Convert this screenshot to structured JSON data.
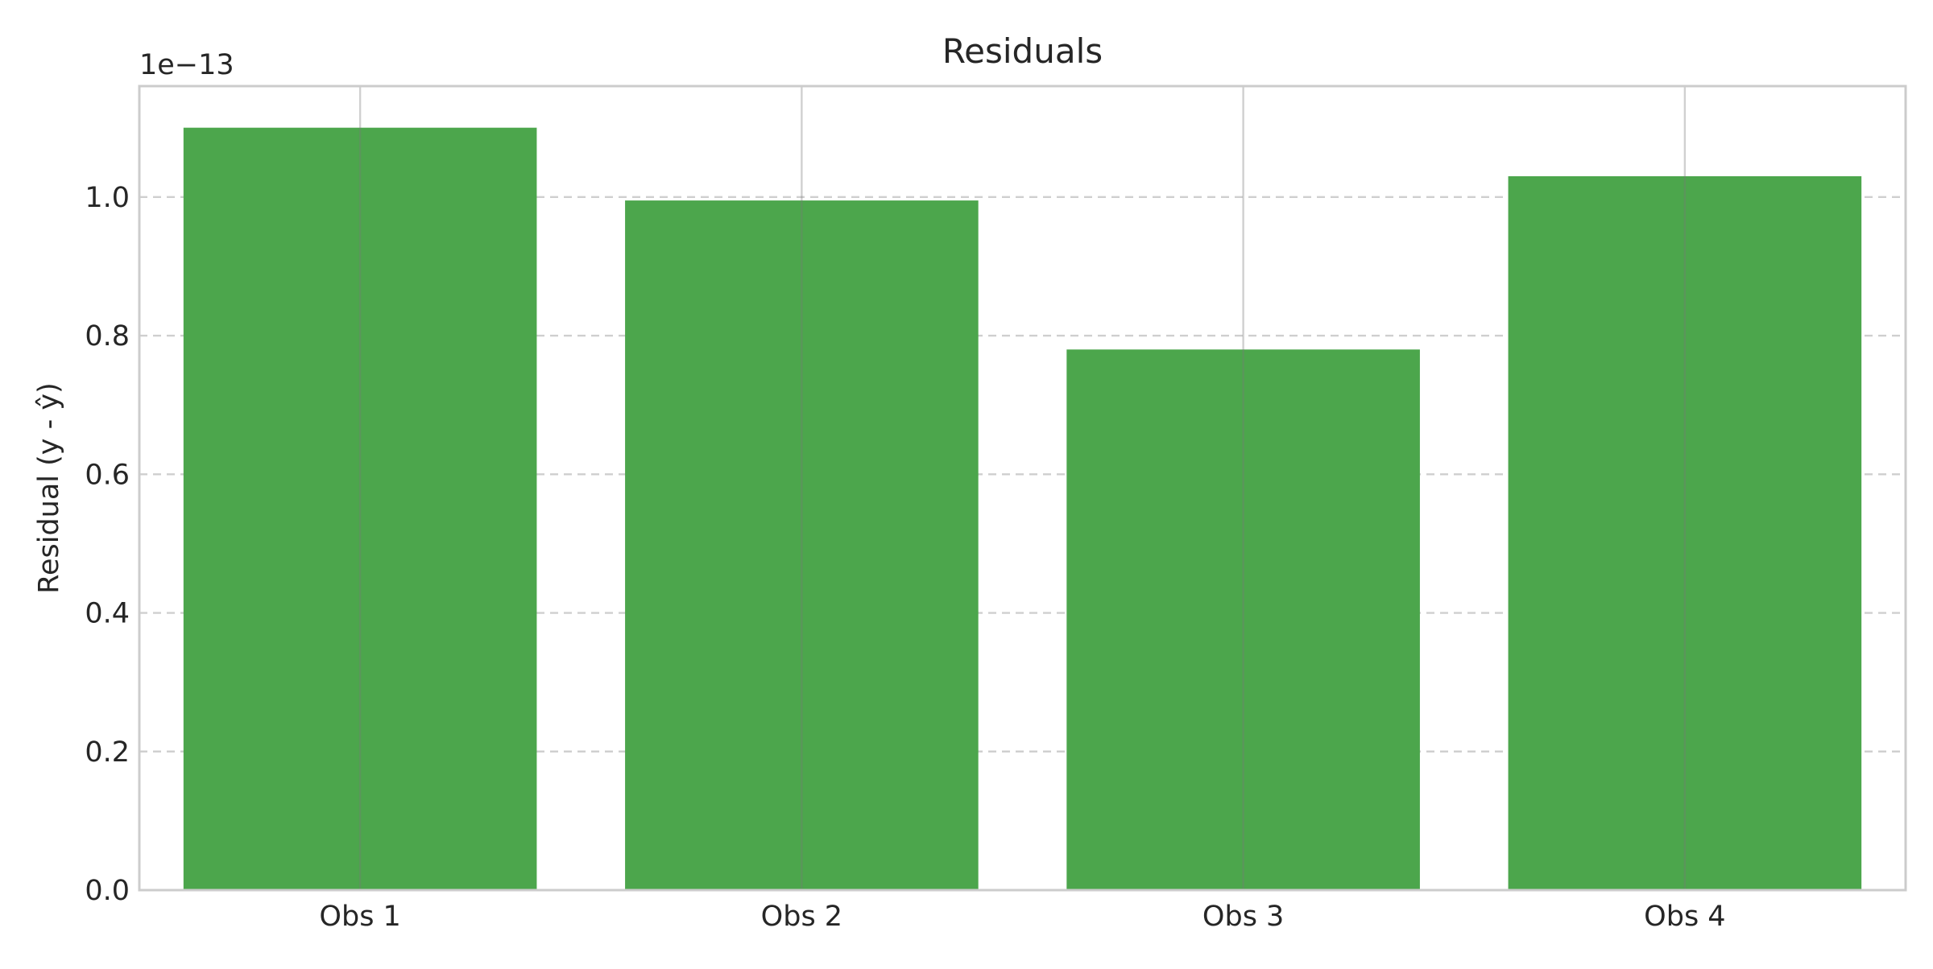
{
  "chart_data": {
    "type": "bar",
    "title": "Residuals",
    "xlabel": "",
    "ylabel": "Residual (y - ŷ)",
    "y_offset_label": "1e−13",
    "y_scale_factor": 1e-13,
    "categories": [
      "Obs 1",
      "Obs 2",
      "Obs 3",
      "Obs 4"
    ],
    "series": [
      {
        "values": [
          1.1e-13,
          9.95e-14,
          7.8e-14,
          1.03e-13
        ]
      }
    ],
    "ylim": [
      0,
      1.16e-13
    ],
    "yticks": [
      0.0,
      0.2,
      0.4,
      0.6,
      0.8,
      1.0
    ],
    "ytick_labels": [
      "0.0",
      "0.2",
      "0.4",
      "0.6",
      "0.8",
      "1.0"
    ],
    "grid": true,
    "grid_style": "horizontal dashed, vertical solid",
    "bar_color": "#4ca64c",
    "zero_line_color": "#e07070",
    "legend": "none"
  }
}
